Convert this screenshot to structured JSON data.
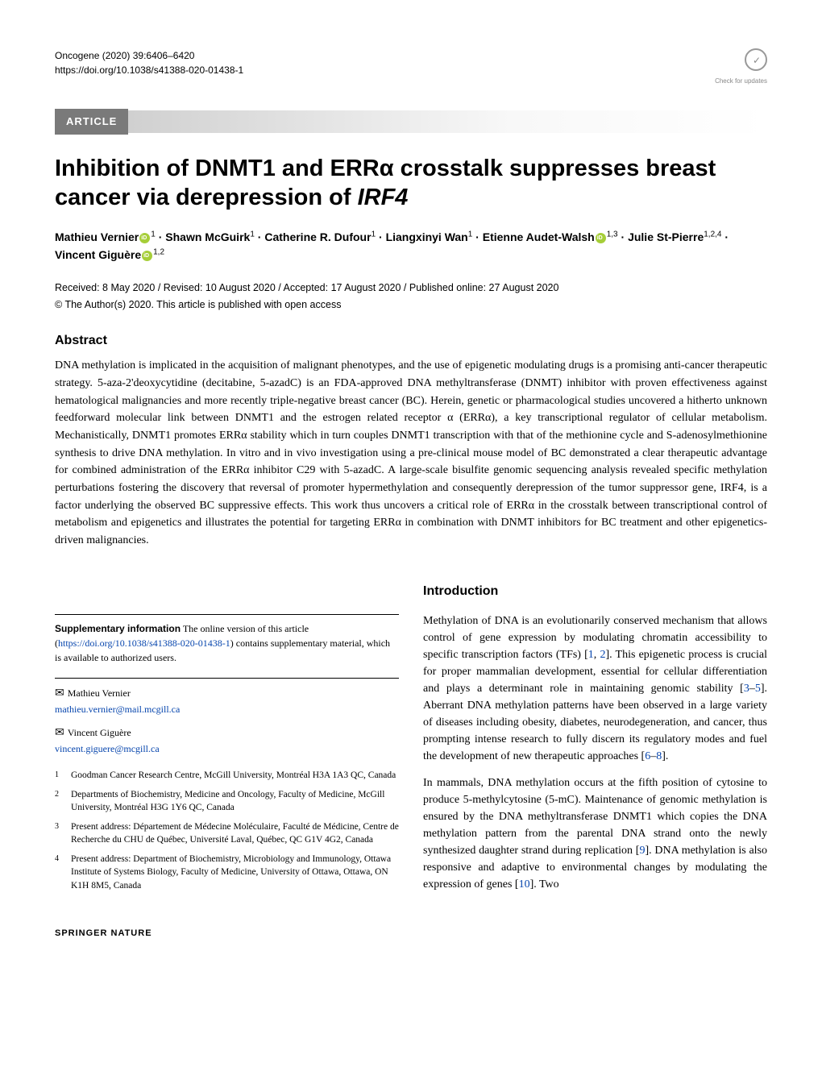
{
  "journal": {
    "name": "Oncogene (2020) 39:6406–6420",
    "doi": "https://doi.org/10.1038/s41388-020-01438-1"
  },
  "update_badge": {
    "label": "Check for updates"
  },
  "article_label": "ARTICLE",
  "title_part1": "Inhibition of DNMT1 and ERRα crosstalk suppresses breast cancer via derepression of ",
  "title_gene": "IRF4",
  "authors": {
    "a1": {
      "name": "Mathieu Vernier",
      "sup": "1"
    },
    "a2": {
      "name": "Shawn McGuirk",
      "sup": "1"
    },
    "a3": {
      "name": "Catherine R. Dufour",
      "sup": "1"
    },
    "a4": {
      "name": "Liangxinyi Wan",
      "sup": "1"
    },
    "a5": {
      "name": "Etienne Audet-Walsh",
      "sup": "1,3"
    },
    "a6": {
      "name": "Julie St-Pierre",
      "sup": "1,2,4"
    },
    "a7": {
      "name": "Vincent Giguère",
      "sup": "1,2"
    },
    "sep": " · "
  },
  "dates": "Received: 8 May 2020 / Revised: 10 August 2020 / Accepted: 17 August 2020 / Published online: 27 August 2020",
  "copyright": "© The Author(s) 2020. This article is published with open access",
  "abstract": {
    "heading": "Abstract",
    "text": "DNA methylation is implicated in the acquisition of malignant phenotypes, and the use of epigenetic modulating drugs is a promising anti-cancer therapeutic strategy. 5-aza-2'deoxycytidine (decitabine, 5-azadC) is an FDA-approved DNA methyltransferase (DNMT) inhibitor with proven effectiveness against hematological malignancies and more recently triple-negative breast cancer (BC). Herein, genetic or pharmacological studies uncovered a hitherto unknown feedforward molecular link between DNMT1 and the estrogen related receptor α (ERRα), a key transcriptional regulator of cellular metabolism. Mechanistically, DNMT1 promotes ERRα stability which in turn couples DNMT1 transcription with that of the methionine cycle and S-adenosylmethionine synthesis to drive DNA methylation. In vitro and in vivo investigation using a pre-clinical mouse model of BC demonstrated a clear therapeutic advantage for combined administration of the ERRα inhibitor C29 with 5-azadC. A large-scale bisulfite genomic sequencing analysis revealed specific methylation perturbations fostering the discovery that reversal of promoter hypermethylation and consequently derepression of the tumor suppressor gene, IRF4, is a factor underlying the observed BC suppressive effects. This work thus uncovers a critical role of ERRα in the crosstalk between transcriptional control of metabolism and epigenetics and illustrates the potential for targeting ERRα in combination with DNMT inhibitors for BC treatment and other epigenetics-driven malignancies."
  },
  "supplementary": {
    "label": "Supplementary information",
    "text1": " The online version of this article (",
    "link": "https://doi.org/10.1038/s41388-020-01438-1",
    "text2": ") contains supplementary material, which is available to authorized users."
  },
  "corresponding": {
    "c1": {
      "name": "Mathieu Vernier",
      "email": "mathieu.vernier@mail.mcgill.ca"
    },
    "c2": {
      "name": "Vincent Giguère",
      "email": "vincent.giguere@mcgill.ca"
    }
  },
  "affiliations": {
    "1": "Goodman Cancer Research Centre, McGill University, Montréal H3A 1A3 QC, Canada",
    "2": "Departments of Biochemistry, Medicine and Oncology, Faculty of Medicine, McGill University, Montréal H3G 1Y6 QC, Canada",
    "3": "Present address: Département de Médecine Moléculaire, Faculté de Médicine, Centre de Recherche du CHU de Québec, Université Laval, Québec, QC G1V 4G2, Canada",
    "4": "Present address: Department of Biochemistry, Microbiology and Immunology, Ottawa Institute of Systems Biology, Faculty of Medicine, University of Ottawa, Ottawa, ON K1H 8M5, Canada"
  },
  "intro": {
    "heading": "Introduction",
    "p1a": "Methylation of DNA is an evolutionarily conserved mechanism that allows control of gene expression by modulating chromatin accessibility to specific transcription factors (TFs) [",
    "r1": "1",
    "p1b": ", ",
    "r2": "2",
    "p1c": "]. This epigenetic process is crucial for proper mammalian development, essential for cellular differentiation and plays a determinant role in maintaining genomic stability [",
    "r3": "3",
    "p1d": "–",
    "r4": "5",
    "p1e": "]. Aberrant DNA methylation patterns have been observed in a large variety of diseases including obesity, diabetes, neurodegeneration, and cancer, thus prompting intense research to fully discern its regulatory modes and fuel the development of new therapeutic approaches [",
    "r5": "6",
    "p1f": "–",
    "r6": "8",
    "p1g": "].",
    "p2a": "In mammals, DNA methylation occurs at the fifth position of cytosine to produce 5-methylcytosine (5-mC). Maintenance of genomic methylation is ensured by the DNA methyltransferase DNMT1 which copies the DNA methylation pattern from the parental DNA strand onto the newly synthesized daughter strand during replication [",
    "r7": "9",
    "p2b": "]. DNA methylation is also responsive and adaptive to environmental changes by modulating the expression of genes [",
    "r8": "10",
    "p2c": "]. Two"
  },
  "footer": "SPRINGER NATURE"
}
